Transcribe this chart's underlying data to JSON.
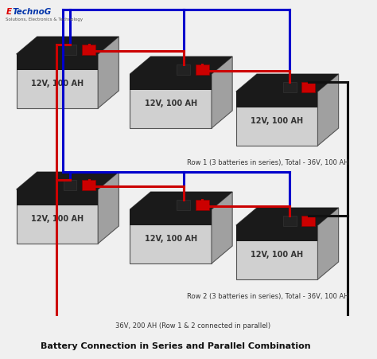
{
  "title": "Battery Connection in Series and Parallel Combination",
  "row1_label": "Row 1 (3 batteries in series), Total - 36V, 100 AH",
  "row2_label": "Row 2 (3 batteries in series), Total - 36V, 100 AH",
  "parallel_label": "36V, 200 AH (Row 1 & 2 connected in parallel)",
  "battery_label": "12V, 100 AH",
  "bg_color": "#f0f0f0",
  "battery_face_color": "#d0d0d0",
  "battery_top_color": "#b0b0b0",
  "battery_side_color": "#a0a0a0",
  "battery_stripe_color": "#1a1a1a",
  "terminal_neg_color": "#222222",
  "terminal_pos_color": "#cc0000",
  "wire_red": "#cc0000",
  "wire_blue": "#0000cc",
  "wire_black": "#111111",
  "logo_color_e": "#dd0000",
  "logo_color_rest": "#0033aa",
  "logo_sub": "Solutions, Electronics & Technology"
}
